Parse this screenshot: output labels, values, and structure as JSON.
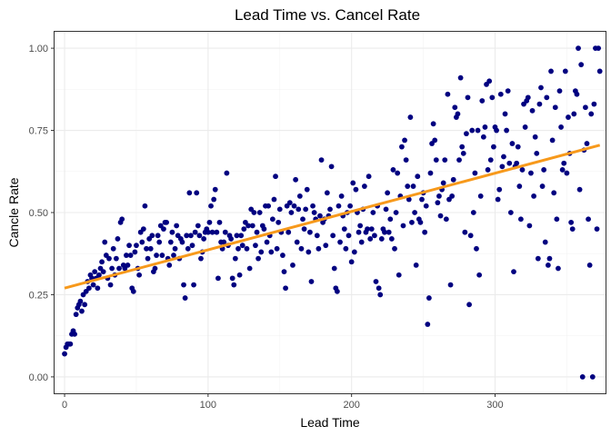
{
  "chart_data": {
    "type": "scatter",
    "title": "Lead Time vs. Cancel Rate",
    "xlabel": "Lead Time",
    "ylabel": "Cancle Rate",
    "xlim": [
      -7,
      377
    ],
    "ylim": [
      -0.05,
      1.05
    ],
    "x_ticks": [
      0,
      100,
      200,
      300
    ],
    "x_tick_labels": [
      "0",
      "100",
      "200",
      "300"
    ],
    "y_ticks": [
      0,
      0.25,
      0.5,
      0.75,
      1.0
    ],
    "y_tick_labels": [
      "0.00",
      "0.25",
      "0.50",
      "0.75",
      "1.00"
    ],
    "grid": true,
    "point_color": "#000080",
    "trend_color": "#F7991B",
    "trend_line": {
      "x": [
        0,
        373
      ],
      "y": [
        0.27,
        0.705
      ]
    },
    "points": [
      [
        0,
        0.07
      ],
      [
        1,
        0.09
      ],
      [
        2,
        0.1
      ],
      [
        3,
        0.1
      ],
      [
        4,
        0.1
      ],
      [
        5,
        0.13
      ],
      [
        6,
        0.14
      ],
      [
        7,
        0.13
      ],
      [
        8,
        0.19
      ],
      [
        9,
        0.21
      ],
      [
        10,
        0.22
      ],
      [
        11,
        0.23
      ],
      [
        12,
        0.2
      ],
      [
        13,
        0.25
      ],
      [
        14,
        0.22
      ],
      [
        15,
        0.26
      ],
      [
        16,
        0.29
      ],
      [
        17,
        0.27
      ],
      [
        18,
        0.31
      ],
      [
        19,
        0.3
      ],
      [
        20,
        0.28
      ],
      [
        21,
        0.32
      ],
      [
        22,
        0.3
      ],
      [
        23,
        0.27
      ],
      [
        24,
        0.31
      ],
      [
        25,
        0.33
      ],
      [
        26,
        0.35
      ],
      [
        27,
        0.32
      ],
      [
        28,
        0.41
      ],
      [
        29,
        0.37
      ],
      [
        30,
        0.3
      ],
      [
        31,
        0.36
      ],
      [
        32,
        0.28
      ],
      [
        33,
        0.33
      ],
      [
        34,
        0.39
      ],
      [
        35,
        0.31
      ],
      [
        36,
        0.36
      ],
      [
        37,
        0.42
      ],
      [
        38,
        0.33
      ],
      [
        39,
        0.47
      ],
      [
        40,
        0.48
      ],
      [
        41,
        0.34
      ],
      [
        42,
        0.33
      ],
      [
        43,
        0.37
      ],
      [
        44,
        0.34
      ],
      [
        45,
        0.4
      ],
      [
        46,
        0.37
      ],
      [
        47,
        0.27
      ],
      [
        48,
        0.26
      ],
      [
        49,
        0.38
      ],
      [
        50,
        0.4
      ],
      [
        51,
        0.33
      ],
      [
        52,
        0.31
      ],
      [
        53,
        0.44
      ],
      [
        54,
        0.41
      ],
      [
        55,
        0.45
      ],
      [
        56,
        0.52
      ],
      [
        57,
        0.39
      ],
      [
        58,
        0.36
      ],
      [
        59,
        0.42
      ],
      [
        60,
        0.39
      ],
      [
        61,
        0.43
      ],
      [
        62,
        0.32
      ],
      [
        63,
        0.33
      ],
      [
        64,
        0.37
      ],
      [
        65,
        0.43
      ],
      [
        66,
        0.41
      ],
      [
        67,
        0.46
      ],
      [
        68,
        0.37
      ],
      [
        69,
        0.45
      ],
      [
        70,
        0.47
      ],
      [
        71,
        0.47
      ],
      [
        72,
        0.36
      ],
      [
        73,
        0.34
      ],
      [
        74,
        0.41
      ],
      [
        75,
        0.44
      ],
      [
        76,
        0.37
      ],
      [
        77,
        0.39
      ],
      [
        78,
        0.46
      ],
      [
        79,
        0.43
      ],
      [
        80,
        0.36
      ],
      [
        81,
        0.42
      ],
      [
        82,
        0.41
      ],
      [
        83,
        0.28
      ],
      [
        84,
        0.24
      ],
      [
        85,
        0.43
      ],
      [
        86,
        0.39
      ],
      [
        87,
        0.56
      ],
      [
        88,
        0.43
      ],
      [
        89,
        0.4
      ],
      [
        90,
        0.28
      ],
      [
        91,
        0.44
      ],
      [
        92,
        0.56
      ],
      [
        93,
        0.46
      ],
      [
        94,
        0.43
      ],
      [
        95,
        0.36
      ],
      [
        96,
        0.38
      ],
      [
        97,
        0.42
      ],
      [
        98,
        0.44
      ],
      [
        99,
        0.45
      ],
      [
        100,
        0.44
      ],
      [
        101,
        0.47
      ],
      [
        102,
        0.52
      ],
      [
        103,
        0.44
      ],
      [
        104,
        0.54
      ],
      [
        105,
        0.57
      ],
      [
        106,
        0.44
      ],
      [
        107,
        0.3
      ],
      [
        108,
        0.47
      ],
      [
        109,
        0.41
      ],
      [
        110,
        0.39
      ],
      [
        111,
        0.41
      ],
      [
        112,
        0.44
      ],
      [
        113,
        0.62
      ],
      [
        114,
        0.4
      ],
      [
        115,
        0.43
      ],
      [
        116,
        0.42
      ],
      [
        117,
        0.3
      ],
      [
        118,
        0.28
      ],
      [
        119,
        0.36
      ],
      [
        120,
        0.43
      ],
      [
        121,
        0.39
      ],
      [
        122,
        0.31
      ],
      [
        123,
        0.43
      ],
      [
        124,
        0.4
      ],
      [
        125,
        0.45
      ],
      [
        126,
        0.47
      ],
      [
        127,
        0.39
      ],
      [
        128,
        0.46
      ],
      [
        129,
        0.33
      ],
      [
        130,
        0.51
      ],
      [
        131,
        0.46
      ],
      [
        132,
        0.5
      ],
      [
        133,
        0.4
      ],
      [
        134,
        0.44
      ],
      [
        135,
        0.36
      ],
      [
        136,
        0.5
      ],
      [
        137,
        0.38
      ],
      [
        138,
        0.46
      ],
      [
        139,
        0.45
      ],
      [
        140,
        0.52
      ],
      [
        141,
        0.41
      ],
      [
        142,
        0.52
      ],
      [
        143,
        0.43
      ],
      [
        144,
        0.38
      ],
      [
        145,
        0.48
      ],
      [
        146,
        0.54
      ],
      [
        147,
        0.61
      ],
      [
        148,
        0.39
      ],
      [
        149,
        0.47
      ],
      [
        150,
        0.51
      ],
      [
        151,
        0.44
      ],
      [
        152,
        0.37
      ],
      [
        153,
        0.32
      ],
      [
        154,
        0.27
      ],
      [
        155,
        0.52
      ],
      [
        156,
        0.44
      ],
      [
        157,
        0.53
      ],
      [
        158,
        0.5
      ],
      [
        159,
        0.34
      ],
      [
        160,
        0.52
      ],
      [
        161,
        0.6
      ],
      [
        162,
        0.41
      ],
      [
        163,
        0.51
      ],
      [
        164,
        0.55
      ],
      [
        165,
        0.39
      ],
      [
        166,
        0.48
      ],
      [
        167,
        0.45
      ],
      [
        168,
        0.51
      ],
      [
        169,
        0.57
      ],
      [
        170,
        0.38
      ],
      [
        171,
        0.44
      ],
      [
        172,
        0.29
      ],
      [
        173,
        0.52
      ],
      [
        174,
        0.5
      ],
      [
        175,
        0.48
      ],
      [
        176,
        0.43
      ],
      [
        177,
        0.39
      ],
      [
        178,
        0.49
      ],
      [
        179,
        0.66
      ],
      [
        180,
        0.47
      ],
      [
        181,
        0.48
      ],
      [
        182,
        0.4
      ],
      [
        183,
        0.56
      ],
      [
        184,
        0.49
      ],
      [
        185,
        0.51
      ],
      [
        186,
        0.64
      ],
      [
        187,
        0.43
      ],
      [
        188,
        0.33
      ],
      [
        189,
        0.27
      ],
      [
        190,
        0.26
      ],
      [
        191,
        0.52
      ],
      [
        192,
        0.41
      ],
      [
        193,
        0.55
      ],
      [
        194,
        0.49
      ],
      [
        195,
        0.45
      ],
      [
        196,
        0.39
      ],
      [
        197,
        0.5
      ],
      [
        198,
        0.43
      ],
      [
        199,
        0.52
      ],
      [
        200,
        0.35
      ],
      [
        201,
        0.59
      ],
      [
        202,
        0.38
      ],
      [
        203,
        0.57
      ],
      [
        204,
        0.5
      ],
      [
        205,
        0.44
      ],
      [
        206,
        0.46
      ],
      [
        207,
        0.41
      ],
      [
        208,
        0.51
      ],
      [
        209,
        0.58
      ],
      [
        210,
        0.44
      ],
      [
        211,
        0.45
      ],
      [
        212,
        0.61
      ],
      [
        213,
        0.42
      ],
      [
        214,
        0.45
      ],
      [
        215,
        0.5
      ],
      [
        216,
        0.43
      ],
      [
        217,
        0.29
      ],
      [
        218,
        0.52
      ],
      [
        219,
        0.27
      ],
      [
        220,
        0.25
      ],
      [
        221,
        0.42
      ],
      [
        222,
        0.45
      ],
      [
        223,
        0.44
      ],
      [
        224,
        0.51
      ],
      [
        225,
        0.56
      ],
      [
        226,
        0.44
      ],
      [
        227,
        0.48
      ],
      [
        228,
        0.42
      ],
      [
        229,
        0.63
      ],
      [
        230,
        0.39
      ],
      [
        231,
        0.5
      ],
      [
        232,
        0.62
      ],
      [
        233,
        0.31
      ],
      [
        234,
        0.55
      ],
      [
        235,
        0.7
      ],
      [
        236,
        0.46
      ],
      [
        237,
        0.72
      ],
      [
        238,
        0.66
      ],
      [
        239,
        0.58
      ],
      [
        240,
        0.54
      ],
      [
        241,
        0.79
      ],
      [
        242,
        0.47
      ],
      [
        243,
        0.58
      ],
      [
        244,
        0.5
      ],
      [
        245,
        0.34
      ],
      [
        246,
        0.61
      ],
      [
        247,
        0.48
      ],
      [
        248,
        0.47
      ],
      [
        249,
        0.54
      ],
      [
        250,
        0.56
      ],
      [
        251,
        0.44
      ],
      [
        252,
        0.52
      ],
      [
        253,
        0.16
      ],
      [
        254,
        0.24
      ],
      [
        255,
        0.62
      ],
      [
        256,
        0.71
      ],
      [
        257,
        0.77
      ],
      [
        258,
        0.72
      ],
      [
        259,
        0.66
      ],
      [
        260,
        0.53
      ],
      [
        261,
        0.55
      ],
      [
        262,
        0.49
      ],
      [
        263,
        0.57
      ],
      [
        264,
        0.59
      ],
      [
        265,
        0.66
      ],
      [
        266,
        0.48
      ],
      [
        267,
        0.86
      ],
      [
        268,
        0.54
      ],
      [
        269,
        0.28
      ],
      [
        270,
        0.55
      ],
      [
        271,
        0.6
      ],
      [
        272,
        0.82
      ],
      [
        273,
        0.79
      ],
      [
        274,
        0.8
      ],
      [
        275,
        0.66
      ],
      [
        276,
        0.91
      ],
      [
        277,
        0.7
      ],
      [
        278,
        0.68
      ],
      [
        279,
        0.44
      ],
      [
        280,
        0.74
      ],
      [
        281,
        0.85
      ],
      [
        282,
        0.22
      ],
      [
        283,
        0.43
      ],
      [
        284,
        0.75
      ],
      [
        285,
        0.5
      ],
      [
        286,
        0.62
      ],
      [
        287,
        0.39
      ],
      [
        288,
        0.75
      ],
      [
        289,
        0.31
      ],
      [
        290,
        0.55
      ],
      [
        291,
        0.84
      ],
      [
        292,
        0.73
      ],
      [
        293,
        0.76
      ],
      [
        294,
        0.89
      ],
      [
        295,
        0.63
      ],
      [
        296,
        0.9
      ],
      [
        297,
        0.66
      ],
      [
        298,
        0.85
      ],
      [
        299,
        0.7
      ],
      [
        300,
        0.76
      ],
      [
        301,
        0.75
      ],
      [
        302,
        0.54
      ],
      [
        303,
        0.57
      ],
      [
        304,
        0.86
      ],
      [
        305,
        0.64
      ],
      [
        306,
        0.67
      ],
      [
        307,
        0.8
      ],
      [
        308,
        0.75
      ],
      [
        309,
        0.87
      ],
      [
        310,
        0.65
      ],
      [
        311,
        0.5
      ],
      [
        312,
        0.71
      ],
      [
        313,
        0.32
      ],
      [
        314,
        0.64
      ],
      [
        315,
        0.65
      ],
      [
        316,
        0.7
      ],
      [
        317,
        0.58
      ],
      [
        318,
        0.48
      ],
      [
        319,
        0.63
      ],
      [
        320,
        0.83
      ],
      [
        321,
        0.76
      ],
      [
        322,
        0.84
      ],
      [
        323,
        0.85
      ],
      [
        324,
        0.46
      ],
      [
        325,
        0.62
      ],
      [
        326,
        0.81
      ],
      [
        327,
        0.55
      ],
      [
        328,
        0.73
      ],
      [
        329,
        0.68
      ],
      [
        330,
        0.36
      ],
      [
        331,
        0.83
      ],
      [
        332,
        0.88
      ],
      [
        333,
        0.58
      ],
      [
        334,
        0.63
      ],
      [
        335,
        0.41
      ],
      [
        336,
        0.85
      ],
      [
        337,
        0.34
      ],
      [
        338,
        0.36
      ],
      [
        339,
        0.93
      ],
      [
        340,
        0.72
      ],
      [
        341,
        0.56
      ],
      [
        342,
        0.82
      ],
      [
        343,
        0.48
      ],
      [
        344,
        0.33
      ],
      [
        345,
        0.87
      ],
      [
        346,
        0.76
      ],
      [
        347,
        0.63
      ],
      [
        348,
        0.65
      ],
      [
        349,
        0.93
      ],
      [
        350,
        0.62
      ],
      [
        351,
        0.79
      ],
      [
        352,
        0.68
      ],
      [
        353,
        0.47
      ],
      [
        354,
        0.45
      ],
      [
        355,
        0.8
      ],
      [
        356,
        0.87
      ],
      [
        357,
        0.86
      ],
      [
        358,
        1.0
      ],
      [
        359,
        0.57
      ],
      [
        360,
        0.95
      ],
      [
        361,
        0.0
      ],
      [
        362,
        0.69
      ],
      [
        363,
        0.82
      ],
      [
        364,
        0.71
      ],
      [
        365,
        0.48
      ],
      [
        366,
        0.34
      ],
      [
        367,
        0.8
      ],
      [
        368,
        0.0
      ],
      [
        369,
        0.83
      ],
      [
        370,
        1.0
      ],
      [
        371,
        0.45
      ],
      [
        372,
        1.0
      ],
      [
        373,
        0.93
      ]
    ]
  }
}
